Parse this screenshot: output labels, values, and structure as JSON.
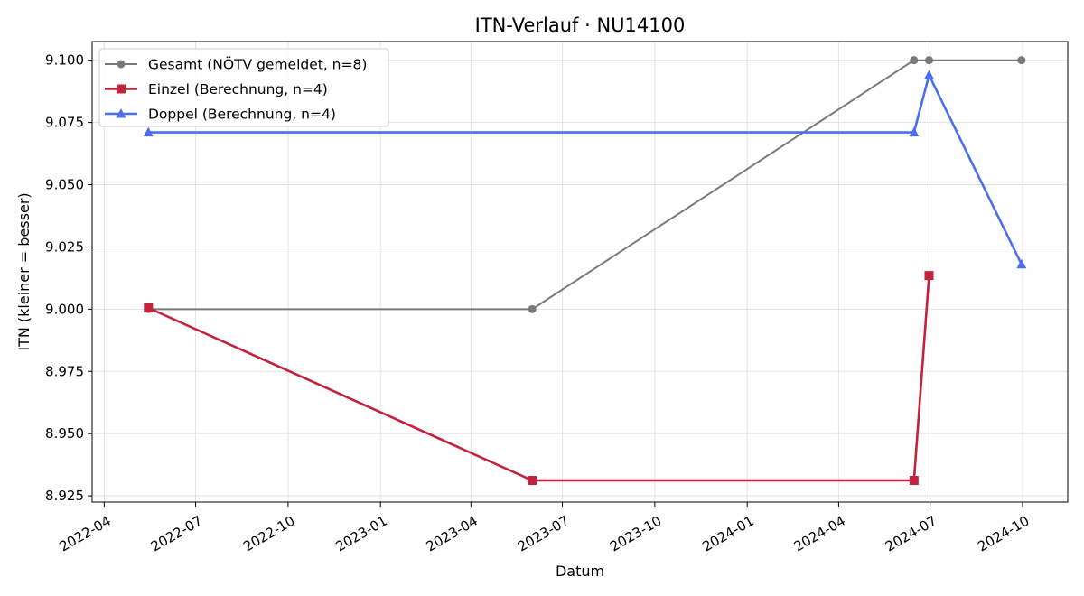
{
  "chart_data": {
    "type": "line",
    "title": "ITN-Verlauf · NU14100",
    "xlabel": "Datum",
    "ylabel": "ITN  (kleiner = besser)",
    "x_type": "date",
    "xlim": [
      "2022-03-20",
      "2024-11-15"
    ],
    "ylim": [
      8.9225,
      9.1075
    ],
    "grid": true,
    "legend_position": "upper-left",
    "x_ticks": [
      "2022-04-01",
      "2022-07-01",
      "2022-10-01",
      "2023-01-01",
      "2023-04-01",
      "2023-07-01",
      "2023-10-01",
      "2024-01-01",
      "2024-04-01",
      "2024-07-01",
      "2024-10-01"
    ],
    "x_tick_labels": [
      "2022-04",
      "2022-07",
      "2022-10",
      "2023-01",
      "2023-04",
      "2023-07",
      "2023-10",
      "2024-01",
      "2024-04",
      "2024-07",
      "2024-10"
    ],
    "y_ticks": [
      8.925,
      8.95,
      8.975,
      9.0,
      9.025,
      9.05,
      9.075,
      9.1
    ],
    "y_tick_labels": [
      "8.925",
      "8.950",
      "8.975",
      "9.000",
      "9.025",
      "9.050",
      "9.075",
      "9.100"
    ],
    "series": [
      {
        "name": "Gesamt (NÖTV gemeldet, n=8)",
        "color": "#7a7a7a",
        "marker": "circle",
        "points": [
          {
            "x": "2022-05-15",
            "y": 9.0
          },
          {
            "x": "2023-06-01",
            "y": 9.0
          },
          {
            "x": "2024-06-15",
            "y": 9.1
          },
          {
            "x": "2024-06-30",
            "y": 9.1
          },
          {
            "x": "2024-09-30",
            "y": 9.1
          }
        ]
      },
      {
        "name": "Einzel (Berechnung, n=4)",
        "color": "#c4213d",
        "marker": "square",
        "points": [
          {
            "x": "2022-05-15",
            "y": 9.0005
          },
          {
            "x": "2023-06-01",
            "y": 8.9312
          },
          {
            "x": "2024-06-15",
            "y": 8.9312
          },
          {
            "x": "2024-06-30",
            "y": 9.0135
          }
        ]
      },
      {
        "name": "Doppel (Berechnung, n=4)",
        "color": "#4a6ff0",
        "marker": "triangle",
        "points": [
          {
            "x": "2022-05-15",
            "y": 9.071
          },
          {
            "x": "2024-06-15",
            "y": 9.071
          },
          {
            "x": "2024-06-30",
            "y": 9.094
          },
          {
            "x": "2024-09-30",
            "y": 9.018
          }
        ]
      }
    ]
  }
}
